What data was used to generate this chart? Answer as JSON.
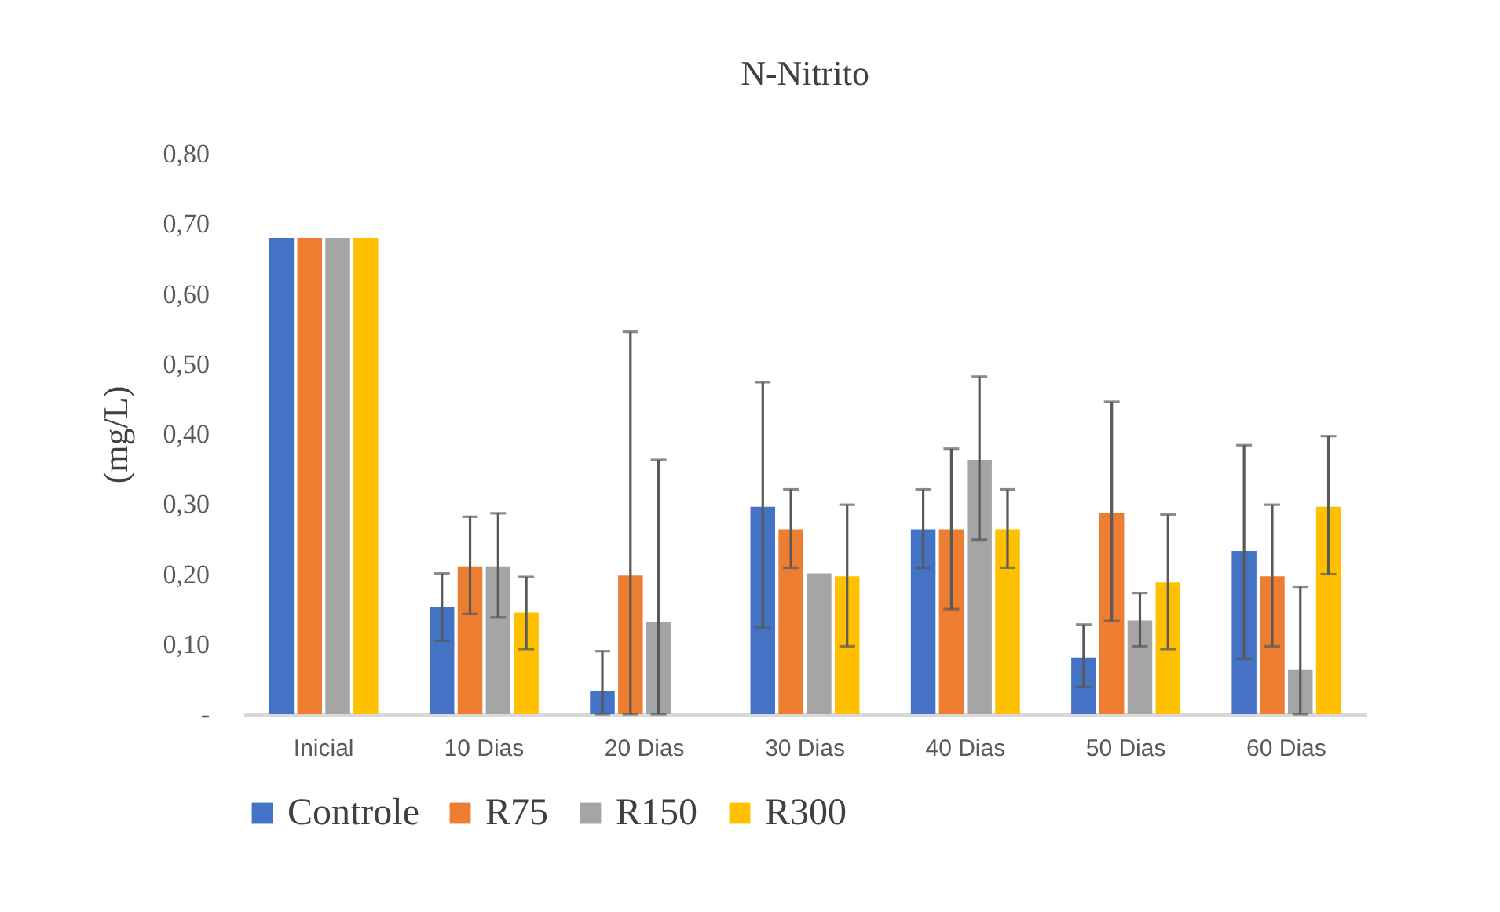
{
  "chart_data": {
    "type": "bar",
    "title": "N-Nitrito",
    "ylabel": "(mg/L)",
    "categories": [
      "Inicial",
      "10 Dias",
      "20 Dias",
      "30 Dias",
      "40 Dias",
      "50 Dias",
      "60 Dias"
    ],
    "ylim": [
      0,
      0.8
    ],
    "yticks": [
      {
        "value": 0,
        "label": "-"
      },
      {
        "value": 0.1,
        "label": "0,10"
      },
      {
        "value": 0.2,
        "label": "0,20"
      },
      {
        "value": 0.3,
        "label": "0,30"
      },
      {
        "value": 0.4,
        "label": "0,40"
      },
      {
        "value": 0.5,
        "label": "0,50"
      },
      {
        "value": 0.6,
        "label": "0,60"
      },
      {
        "value": 0.7,
        "label": "0,70"
      },
      {
        "value": 0.8,
        "label": "0,80"
      }
    ],
    "grid": false,
    "legend": "bottom",
    "series": [
      {
        "name": "Controle",
        "color": "#4472c4",
        "values": [
          0.68,
          0.153,
          0.033,
          0.296,
          0.264,
          0.081,
          0.233
        ],
        "errors": [
          null,
          [
            0.105,
            0.201
          ],
          [
            0,
            0.09
          ],
          [
            0.124,
            0.474
          ],
          [
            0.209,
            0.321
          ],
          [
            0.039,
            0.128
          ],
          [
            0.079,
            0.384
          ]
        ]
      },
      {
        "name": "R75",
        "color": "#ed7d31",
        "values": [
          0.68,
          0.211,
          0.198,
          0.264,
          0.264,
          0.287,
          0.197
        ],
        "errors": [
          null,
          [
            0.143,
            0.282
          ],
          [
            0,
            0.546
          ],
          [
            0.209,
            0.321
          ],
          [
            0.15,
            0.379
          ],
          [
            0.133,
            0.446
          ],
          [
            0.097,
            0.299
          ]
        ]
      },
      {
        "name": "R150",
        "color": "#a5a5a5",
        "values": [
          0.68,
          0.211,
          0.131,
          0.201,
          0.363,
          0.134,
          0.063
        ],
        "errors": [
          null,
          [
            0.138,
            0.287
          ],
          [
            0,
            0.363
          ],
          null,
          [
            0.249,
            0.482
          ],
          [
            0.097,
            0.173
          ],
          [
            0,
            0.182
          ]
        ]
      },
      {
        "name": "R300",
        "color": "#ffc000",
        "values": [
          0.68,
          0.145,
          null,
          0.197,
          0.264,
          0.188,
          0.296
        ],
        "errors": [
          null,
          [
            0.093,
            0.196
          ],
          null,
          [
            0.097,
            0.299
          ],
          [
            0.209,
            0.321
          ],
          [
            0.093,
            0.285
          ],
          [
            0.2,
            0.397
          ]
        ]
      }
    ]
  }
}
